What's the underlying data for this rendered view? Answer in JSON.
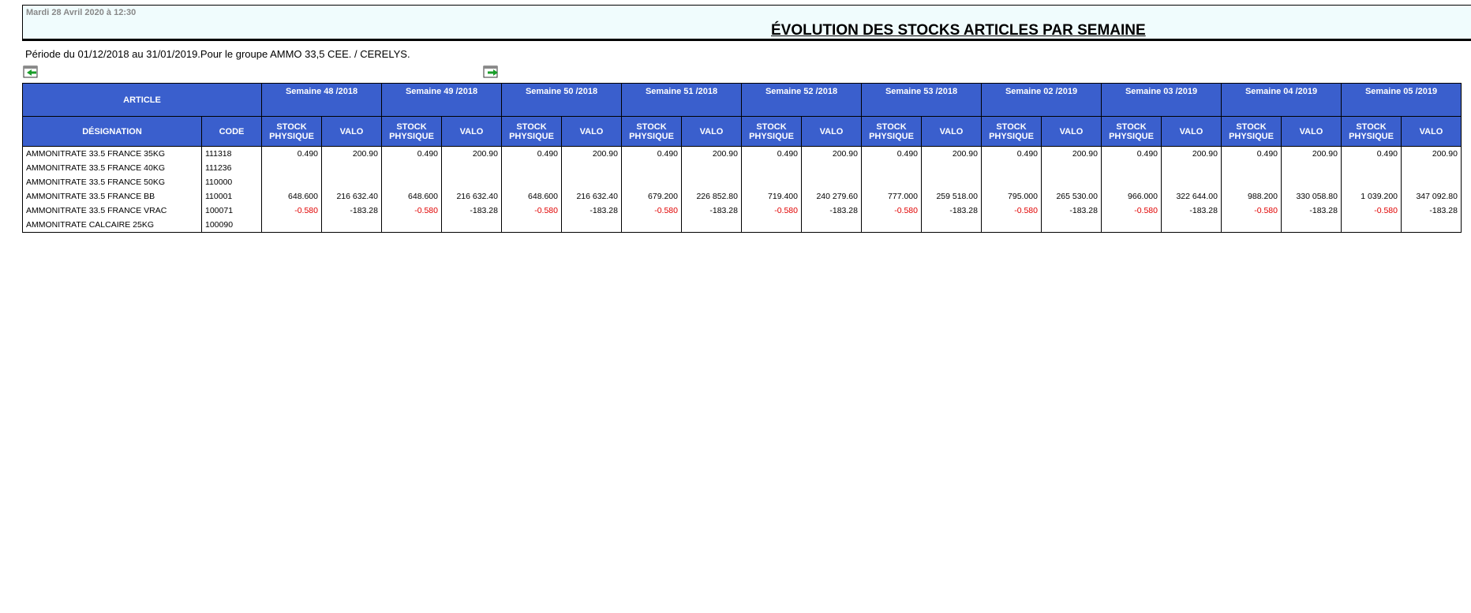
{
  "header": {
    "date": "Mardi 28 Avril 2020 à 12:30",
    "title": "ÉVOLUTION DES STOCKS ARTICLES PAR SEMAINE"
  },
  "period": "Période du 01/12/2018 au 31/01/2019.Pour le groupe AMMO 33,5 CEE. / CERELYS.",
  "table": {
    "article": "ARTICLE",
    "designation": "DÉSIGNATION",
    "code": "CODE",
    "stock": "STOCK PHYSIQUE",
    "valo": "VALO",
    "weeks": [
      "Semaine 48 /2018",
      "Semaine 49 /2018",
      "Semaine 50 /2018",
      "Semaine 51 /2018",
      "Semaine 52 /2018",
      "Semaine 53 /2018",
      "Semaine 02 /2019",
      "Semaine 03 /2019",
      "Semaine 04 /2019",
      "Semaine 05 /2019"
    ],
    "rows": [
      {
        "designation": "AMMONITRATE 33.5 FRANCE 35KG",
        "code": "111318",
        "cells": [
          "0.490",
          "200.90",
          "0.490",
          "200.90",
          "0.490",
          "200.90",
          "0.490",
          "200.90",
          "0.490",
          "200.90",
          "0.490",
          "200.90",
          "0.490",
          "200.90",
          "0.490",
          "200.90",
          "0.490",
          "200.90",
          "0.490",
          "200.90"
        ]
      },
      {
        "designation": "AMMONITRATE 33.5 FRANCE 40KG",
        "code": "111236"
      },
      {
        "designation": "AMMONITRATE 33.5 FRANCE 50KG",
        "code": "110000"
      },
      {
        "designation": "AMMONITRATE 33.5 FRANCE BB",
        "code": "110001",
        "cells": [
          "648.600",
          "216 632.40",
          "648.600",
          "216 632.40",
          "648.600",
          "216 632.40",
          "679.200",
          "226 852.80",
          "719.400",
          "240 279.60",
          "777.000",
          "259 518.00",
          "795.000",
          "265 530.00",
          "966.000",
          "322 644.00",
          "988.200",
          "330 058.80",
          "1 039.200",
          "347 092.80"
        ]
      },
      {
        "designation": "AMMONITRATE 33.5 FRANCE VRAC",
        "code": "100071",
        "cells": [
          "-0.580",
          "-183.28",
          "-0.580",
          "-183.28",
          "-0.580",
          "-183.28",
          "-0.580",
          "-183.28",
          "-0.580",
          "-183.28",
          "-0.580",
          "-183.28",
          "-0.580",
          "-183.28",
          "-0.580",
          "-183.28",
          "-0.580",
          "-183.28",
          "-0.580",
          "-183.28"
        ]
      },
      {
        "designation": "AMMONITRATE CALCAIRE 25KG",
        "code": "100090"
      }
    ]
  }
}
